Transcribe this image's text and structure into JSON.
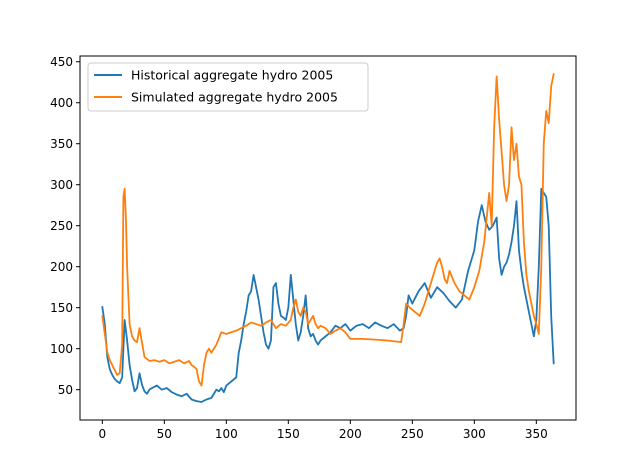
{
  "chart_data": {
    "type": "line",
    "title": "",
    "xlabel": "",
    "ylabel": "",
    "xlim": [
      -18,
      382
    ],
    "ylim": [
      13,
      457
    ],
    "xticks": [
      0,
      50,
      100,
      150,
      200,
      250,
      300,
      350
    ],
    "yticks": [
      50,
      100,
      150,
      200,
      250,
      300,
      350,
      400,
      450
    ],
    "grid": false,
    "legend_position": "top-left",
    "series": [
      {
        "name": "Historical aggregate hydro 2005",
        "color": "#1f77b4",
        "x": [
          0,
          2,
          4,
          6,
          8,
          10,
          12,
          14,
          16,
          18,
          20,
          22,
          24,
          26,
          28,
          30,
          32,
          34,
          36,
          38,
          40,
          44,
          48,
          52,
          56,
          60,
          64,
          68,
          72,
          76,
          80,
          84,
          88,
          90,
          92,
          94,
          96,
          98,
          100,
          104,
          108,
          110,
          112,
          114,
          116,
          118,
          120,
          122,
          124,
          126,
          128,
          130,
          132,
          134,
          136,
          138,
          140,
          142,
          144,
          146,
          148,
          150,
          152,
          154,
          156,
          158,
          160,
          162,
          164,
          166,
          168,
          170,
          172,
          174,
          176,
          180,
          184,
          188,
          192,
          196,
          200,
          205,
          210,
          215,
          220,
          225,
          230,
          235,
          240,
          243,
          245,
          247,
          250,
          255,
          260,
          265,
          270,
          275,
          280,
          285,
          290,
          295,
          300,
          303,
          306,
          309,
          312,
          315,
          318,
          320,
          322,
          324,
          326,
          328,
          330,
          332,
          334,
          336,
          338,
          340,
          342,
          344,
          346,
          348,
          350,
          352,
          354,
          356,
          358,
          360,
          362,
          364
        ],
        "y": [
          151,
          130,
          90,
          75,
          68,
          63,
          60,
          58,
          65,
          135,
          110,
          80,
          62,
          48,
          52,
          70,
          56,
          48,
          45,
          50,
          52,
          55,
          50,
          52,
          47,
          44,
          42,
          45,
          38,
          36,
          35,
          38,
          40,
          45,
          50,
          48,
          52,
          47,
          55,
          60,
          65,
          95,
          110,
          130,
          145,
          165,
          170,
          190,
          175,
          160,
          140,
          120,
          105,
          100,
          110,
          175,
          180,
          155,
          140,
          138,
          135,
          150,
          190,
          160,
          130,
          110,
          120,
          140,
          165,
          125,
          115,
          118,
          110,
          105,
          110,
          115,
          120,
          128,
          125,
          130,
          122,
          128,
          130,
          125,
          132,
          128,
          125,
          130,
          122,
          125,
          140,
          165,
          155,
          170,
          180,
          162,
          175,
          168,
          158,
          150,
          160,
          195,
          220,
          255,
          275,
          255,
          245,
          250,
          260,
          210,
          190,
          200,
          205,
          215,
          230,
          250,
          280,
          220,
          195,
          175,
          160,
          145,
          130,
          115,
          135,
          200,
          295,
          290,
          285,
          250,
          140,
          82
        ]
      },
      {
        "name": "Simulated aggregate hydro 2005",
        "color": "#ff7f0e",
        "x": [
          0,
          2,
          4,
          6,
          8,
          10,
          12,
          14,
          16,
          17,
          18,
          19,
          20,
          22,
          24,
          26,
          28,
          30,
          34,
          38,
          42,
          46,
          50,
          54,
          58,
          62,
          66,
          70,
          72,
          74,
          76,
          78,
          80,
          82,
          84,
          86,
          88,
          92,
          96,
          100,
          104,
          108,
          112,
          116,
          120,
          124,
          128,
          132,
          136,
          140,
          144,
          148,
          152,
          154,
          156,
          158,
          160,
          162,
          164,
          166,
          168,
          170,
          172,
          174,
          176,
          180,
          184,
          188,
          192,
          196,
          200,
          210,
          220,
          230,
          241,
          243,
          245,
          248,
          252,
          256,
          260,
          264,
          268,
          270,
          272,
          274,
          276,
          278,
          280,
          284,
          288,
          292,
          296,
          300,
          304,
          308,
          310,
          312,
          314,
          316,
          318,
          320,
          322,
          324,
          326,
          328,
          330,
          332,
          334,
          336,
          338,
          340,
          342,
          344,
          346,
          348,
          350,
          352,
          354,
          356,
          358,
          360,
          362,
          364
        ],
        "y": [
          140,
          118,
          96,
          86,
          80,
          74,
          68,
          70,
          105,
          285,
          295,
          260,
          200,
          130,
          115,
          110,
          108,
          125,
          90,
          85,
          86,
          84,
          86,
          82,
          84,
          86,
          82,
          85,
          80,
          78,
          75,
          60,
          55,
          80,
          95,
          100,
          95,
          105,
          120,
          118,
          120,
          122,
          125,
          128,
          132,
          130,
          128,
          132,
          135,
          125,
          130,
          128,
          135,
          150,
          160,
          145,
          140,
          150,
          145,
          130,
          135,
          140,
          130,
          125,
          128,
          125,
          118,
          122,
          125,
          120,
          112,
          112,
          111,
          110,
          108,
          130,
          155,
          150,
          145,
          140,
          155,
          175,
          195,
          205,
          210,
          200,
          185,
          180,
          195,
          180,
          170,
          165,
          160,
          175,
          195,
          230,
          260,
          290,
          250,
          370,
          432,
          380,
          340,
          300,
          280,
          300,
          370,
          330,
          350,
          310,
          300,
          230,
          190,
          170,
          155,
          140,
          130,
          118,
          200,
          350,
          390,
          375,
          420,
          435
        ]
      }
    ]
  }
}
